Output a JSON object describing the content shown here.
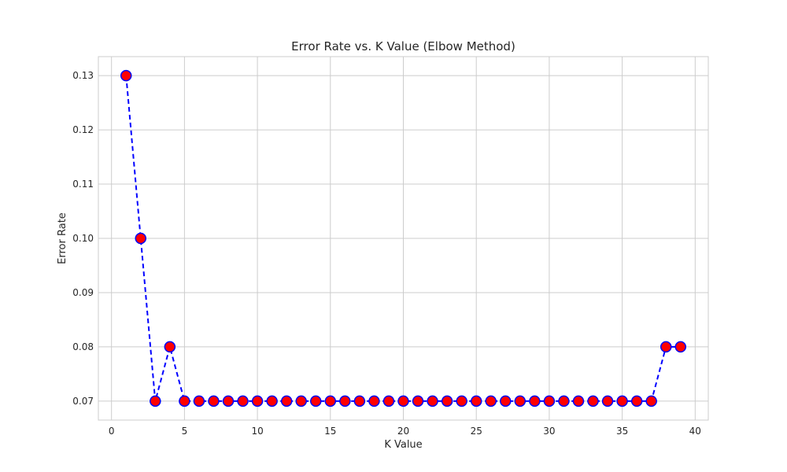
{
  "chart_data": {
    "type": "line",
    "title": "Error Rate vs. K Value (Elbow Method)",
    "xlabel": "K Value",
    "ylabel": "Error Rate",
    "xlim": [
      -0.9,
      40.9
    ],
    "ylim": [
      0.0665,
      0.1335
    ],
    "xticks": [
      0,
      5,
      10,
      15,
      20,
      25,
      30,
      35,
      40
    ],
    "yticks": [
      0.07,
      0.08,
      0.09,
      0.1,
      0.11,
      0.12,
      0.13
    ],
    "ytick_labels": [
      "0.07",
      "0.08",
      "0.09",
      "0.10",
      "0.11",
      "0.12",
      "0.13"
    ],
    "grid": true,
    "series": [
      {
        "x": [
          1,
          2,
          3,
          4,
          5,
          6,
          7,
          8,
          9,
          10,
          11,
          12,
          13,
          14,
          15,
          16,
          17,
          18,
          19,
          20,
          21,
          22,
          23,
          24,
          25,
          26,
          27,
          28,
          29,
          30,
          31,
          32,
          33,
          34,
          35,
          36,
          37,
          38,
          39
        ],
        "y": [
          0.13,
          0.1,
          0.07,
          0.08,
          0.07,
          0.07,
          0.07,
          0.07,
          0.07,
          0.07,
          0.07,
          0.07,
          0.07,
          0.07,
          0.07,
          0.07,
          0.07,
          0.07,
          0.07,
          0.07,
          0.07,
          0.07,
          0.07,
          0.07,
          0.07,
          0.07,
          0.07,
          0.07,
          0.07,
          0.07,
          0.07,
          0.07,
          0.07,
          0.07,
          0.07,
          0.07,
          0.07,
          0.08,
          0.08
        ],
        "line_color": "#0000ff",
        "line_style": "dashed",
        "marker": "circle",
        "marker_face_color": "#ff0000",
        "marker_edge_color": "#0000ff"
      }
    ]
  }
}
